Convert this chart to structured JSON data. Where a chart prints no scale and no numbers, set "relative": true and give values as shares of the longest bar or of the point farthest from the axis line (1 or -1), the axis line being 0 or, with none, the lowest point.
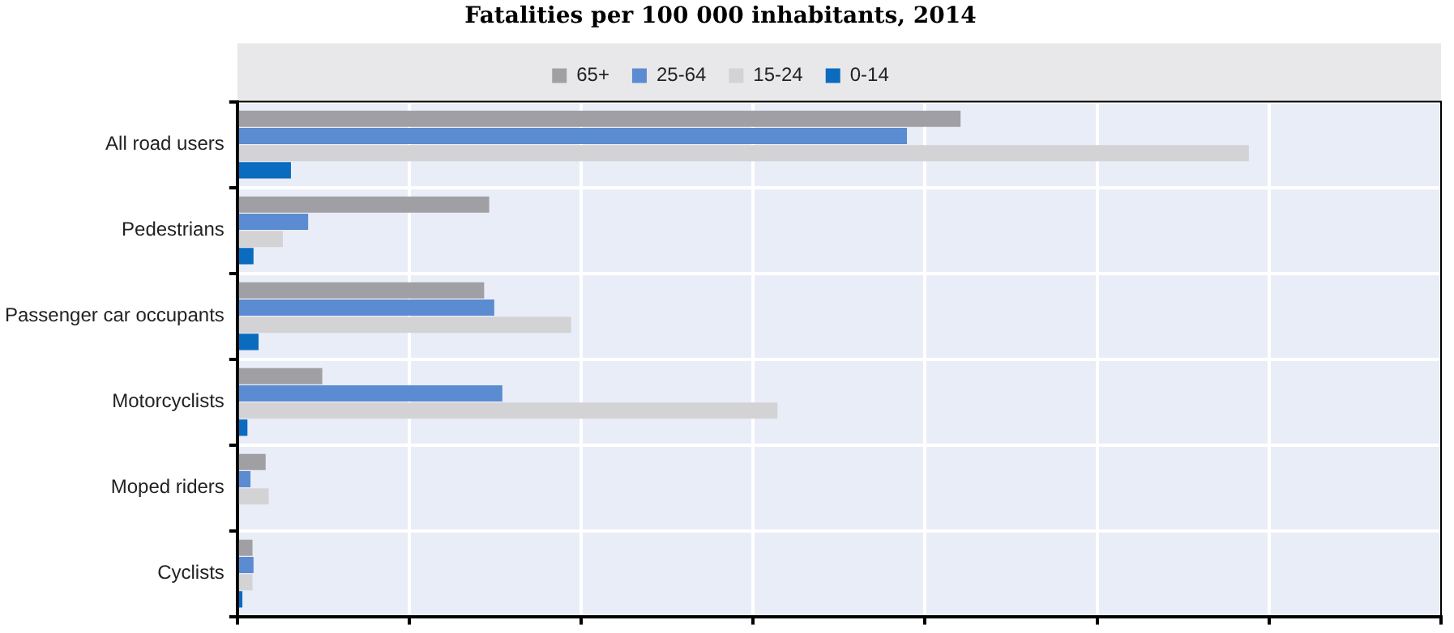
{
  "chart_data": {
    "type": "bar",
    "orientation": "horizontal",
    "relative": true,
    "title": "Fatalities per 100 000 inhabitants, 2014",
    "categories": [
      "All road users",
      "Pedestrians",
      "Passenger car occupants",
      "Motorcyclists",
      "Moped riders",
      "Cyclists"
    ],
    "series": [
      {
        "name": "65+",
        "color": "#a0a0a4",
        "values": [
          0.715,
          0.249,
          0.244,
          0.084,
          0.028,
          0.015
        ]
      },
      {
        "name": "25-64",
        "color": "#5b8bd0",
        "values": [
          0.662,
          0.07,
          0.254,
          0.262,
          0.013,
          0.016
        ]
      },
      {
        "name": "15-24",
        "color": "#d3d3d6",
        "values": [
          1,
          0.045,
          0.33,
          0.534,
          0.031,
          0.015
        ]
      },
      {
        "name": "0-14",
        "color": "#0a6bbf",
        "values": [
          0.053,
          0.016,
          0.021,
          0.01,
          null,
          0.005
        ]
      }
    ],
    "grid": true,
    "legend": "top"
  }
}
